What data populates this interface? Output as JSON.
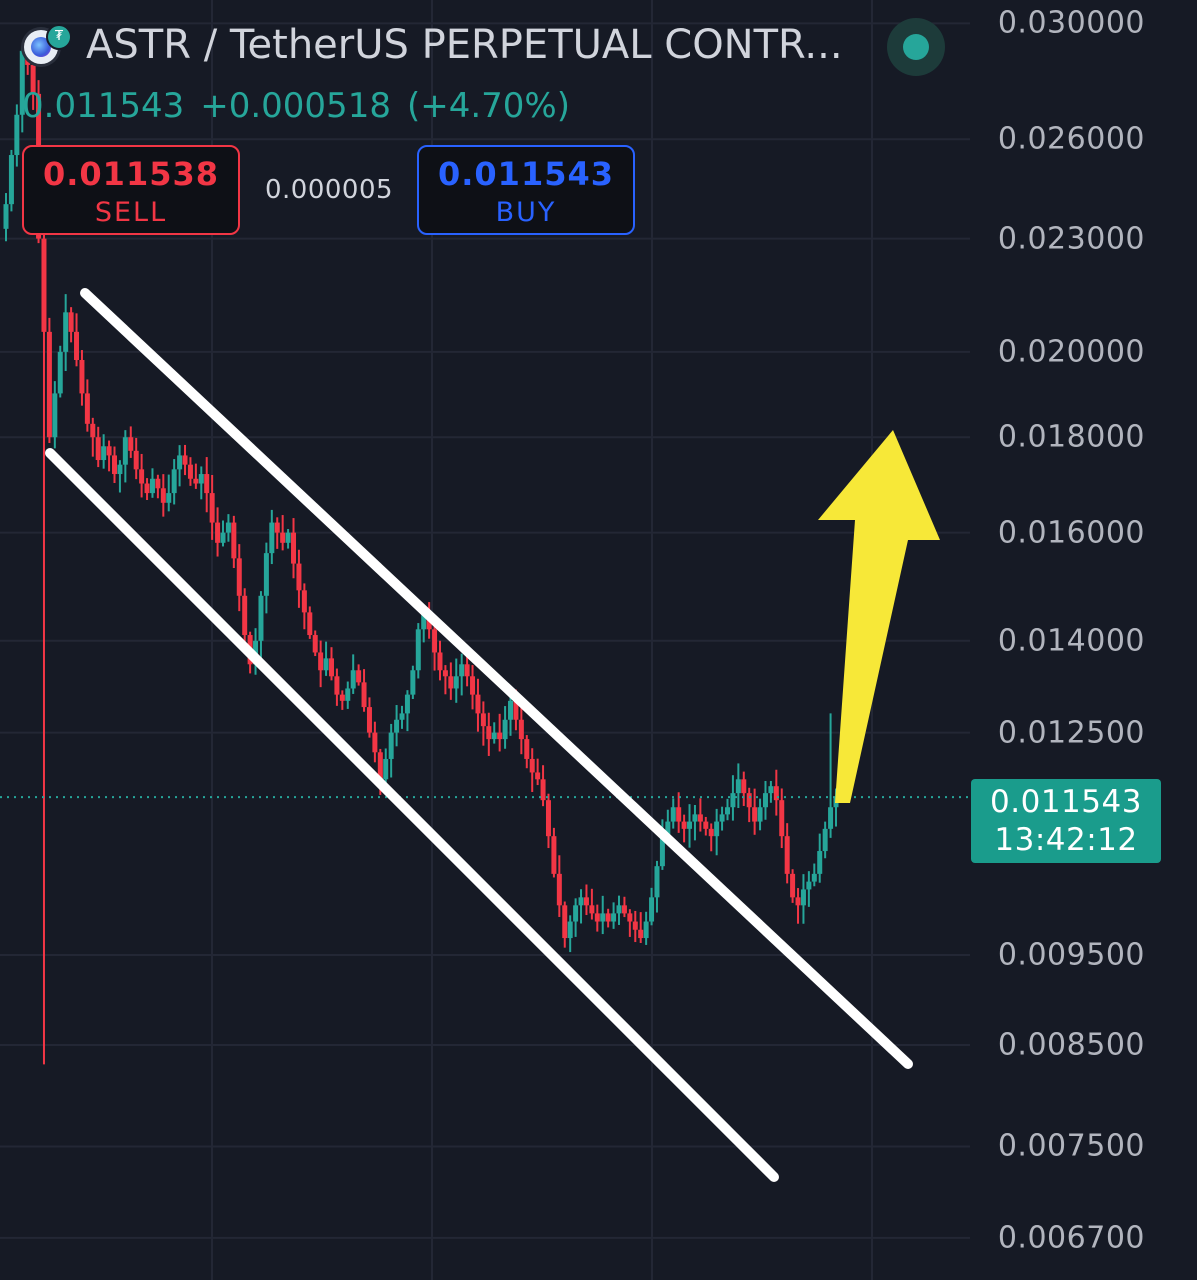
{
  "header": {
    "symbol_title": "ASTR / TetherUS PERPETUAL CONTR...",
    "last_price": "0.011543",
    "change_abs": "+0.000518",
    "change_pct": "(+4.70%)",
    "logo_icon": "astar-coin-icon",
    "badge_icon": "tether-badge-icon",
    "status_icon": "market-open-dot-icon"
  },
  "trade_panel": {
    "sell_price": "0.011538",
    "sell_label": "SELL",
    "spread": "0.000005",
    "buy_price": "0.011543",
    "buy_label": "BUY"
  },
  "price_tag": {
    "price": "0.011543",
    "countdown": "13:42:12"
  },
  "colors": {
    "background": "#161a25",
    "up": "#26a69a",
    "down": "#f23645",
    "buy": "#2962ff",
    "arrow": "#f7e838",
    "channel_lines": "#ffffff"
  },
  "chart_data": {
    "type": "candlestick",
    "y_axis_labels": [
      "0.030000",
      "0.026000",
      "0.023000",
      "0.020000",
      "0.018000",
      "0.016000",
      "0.014000",
      "0.012500",
      "0.009500",
      "0.008500",
      "0.007500",
      "0.006700"
    ],
    "y_scale": "log",
    "ylim": [
      0.0066,
      0.0302
    ],
    "grid": true,
    "last_price": 0.011543,
    "closes": [
      0.024,
      0.0255,
      0.0268,
      0.029,
      0.0285,
      0.0275,
      0.023,
      0.0205,
      0.018,
      0.019,
      0.02,
      0.021,
      0.0205,
      0.0198,
      0.019,
      0.0183,
      0.018,
      0.0175,
      0.0178,
      0.0176,
      0.0172,
      0.0174,
      0.018,
      0.0177,
      0.0173,
      0.017,
      0.0168,
      0.0171,
      0.0169,
      0.0166,
      0.0168,
      0.0173,
      0.0176,
      0.0174,
      0.0171,
      0.017,
      0.0172,
      0.0168,
      0.0162,
      0.0158,
      0.016,
      0.0162,
      0.0155,
      0.0148,
      0.0141,
      0.0136,
      0.014,
      0.0148,
      0.0156,
      0.0162,
      0.016,
      0.0158,
      0.016,
      0.0154,
      0.0149,
      0.0145,
      0.0141,
      0.0138,
      0.0135,
      0.0137,
      0.0134,
      0.0131,
      0.013,
      0.0132,
      0.0135,
      0.0133,
      0.0129,
      0.0125,
      0.0122,
      0.0118,
      0.0121,
      0.0125,
      0.0127,
      0.0128,
      0.0131,
      0.0135,
      0.0142,
      0.0145,
      0.0142,
      0.0138,
      0.0135,
      0.0134,
      0.0132,
      0.0134,
      0.0136,
      0.0134,
      0.0131,
      0.0128,
      0.0126,
      0.0124,
      0.0125,
      0.0124,
      0.0127,
      0.013,
      0.0127,
      0.0124,
      0.0121,
      0.0119,
      0.0118,
      0.0115,
      0.011,
      0.0105,
      0.0101,
      0.0097,
      0.0099,
      0.0101,
      0.0102,
      0.0101,
      0.01,
      0.0099,
      0.01,
      0.0099,
      0.01,
      0.0101,
      0.01,
      0.0099,
      0.0098,
      0.0097,
      0.0099,
      0.0102,
      0.0106,
      0.011,
      0.0112,
      0.0114,
      0.0112,
      0.0111,
      0.0112,
      0.0113,
      0.0112,
      0.0111,
      0.011,
      0.0112,
      0.0113,
      0.0114,
      0.0116,
      0.0118,
      0.0116,
      0.0114,
      0.0112,
      0.0114,
      0.0116,
      0.0117,
      0.0115,
      0.011,
      0.0105,
      0.0102,
      0.0101,
      0.0103,
      0.0104,
      0.0105,
      0.0108,
      0.0111,
      0.0114,
      0.01154
    ]
  }
}
